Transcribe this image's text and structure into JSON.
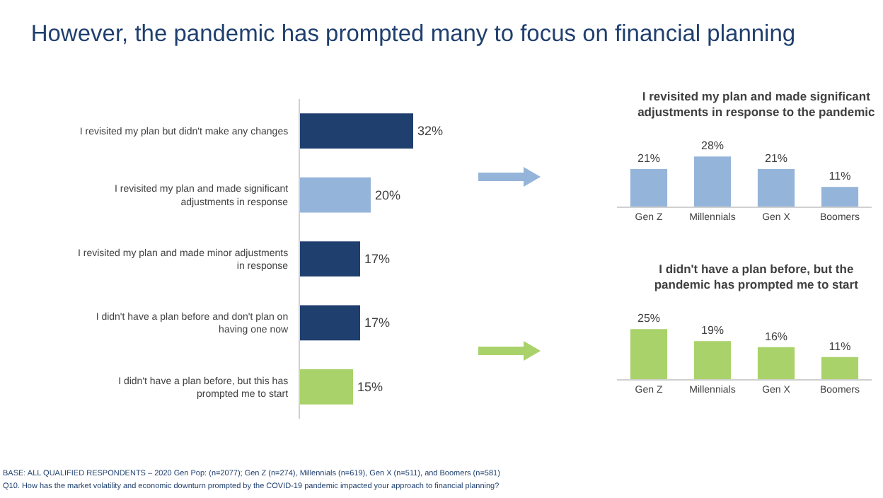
{
  "chart_data": [
    {
      "type": "bar",
      "orientation": "horizontal",
      "title": "However, the pandemic has prompted many to focus on financial planning",
      "categories": [
        "I revisited my plan but didn't make any changes",
        "I revisited my plan and made significant adjustments in response",
        "I revisited my plan and made minor adjustments in response",
        "I didn't have a plan before and don't plan on having one now",
        "I didn't have a plan before, but this has prompted me to start"
      ],
      "values": [
        32,
        20,
        17,
        17,
        15
      ],
      "colors": [
        "#1f3f6e",
        "#95b4da",
        "#1f3f6e",
        "#1f3f6e",
        "#a9d26a"
      ],
      "value_labels": [
        "32%",
        "20%",
        "17%",
        "17%",
        "15%"
      ],
      "tick_labels": "y",
      "grid": false,
      "legend": false,
      "annotations": [
        "BASE: ALL QUALIFIED RESPONDENTS – 2020 Gen Pop: (n=2077); Gen Z (n=274), Millennials (n=619), Gen X (n=511), and Boomers (n=581)",
        "Q10. How has the market volatility and economic downturn prompted by the COVID-19 pandemic impacted your approach to financial planning?"
      ]
    },
    {
      "type": "bar",
      "title": "I revisited my plan and made significant adjustments in response to the pandemic",
      "categories": [
        "Gen Z",
        "Millennials",
        "Gen X",
        "Boomers"
      ],
      "values": [
        21,
        28,
        21,
        11
      ],
      "color": "#95b4da",
      "value_labels": [
        "21%",
        "28%",
        "21%",
        "11%"
      ],
      "tick_labels": "x",
      "grid": false,
      "legend": false
    },
    {
      "type": "bar",
      "title": "I didn't have a plan before, but the pandemic has prompted me to start",
      "categories": [
        "Gen Z",
        "Millennials",
        "Gen X",
        "Boomers"
      ],
      "values": [
        25,
        19,
        16,
        11
      ],
      "color": "#a9d26a",
      "value_labels": [
        "25%",
        "19%",
        "16%",
        "11%"
      ],
      "tick_labels": "x",
      "grid": false,
      "legend": false
    }
  ]
}
